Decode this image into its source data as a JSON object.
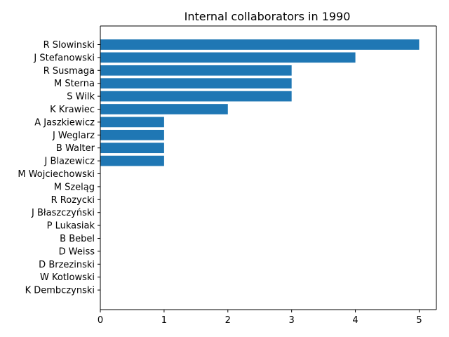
{
  "chart_data": {
    "type": "bar",
    "orientation": "horizontal",
    "title": "Internal collaborators in 1990",
    "xlabel": "",
    "ylabel": "",
    "xlim": [
      0,
      5.27
    ],
    "xticks": [
      0,
      1,
      2,
      3,
      4,
      5
    ],
    "grid": false,
    "bar_color": "#1f77b4",
    "categories": [
      "R Slowinski",
      "J Stefanowski",
      "R Susmaga",
      "M Sterna",
      "S Wilk",
      "K Krawiec",
      "A Jaszkiewicz",
      "J Weglarz",
      "B Walter",
      "J Blazewicz",
      "M Wojciechowski",
      "M Szeląg",
      "R Rozycki",
      "J Błaszczyński",
      "P Lukasiak",
      "B Bebel",
      "D Weiss",
      "D Brzezinski",
      "W Kotlowski",
      "K Dembczynski"
    ],
    "values": [
      5,
      4,
      3,
      3,
      3,
      2,
      1,
      1,
      1,
      1,
      0,
      0,
      0,
      0,
      0,
      0,
      0,
      0,
      0,
      0
    ]
  }
}
